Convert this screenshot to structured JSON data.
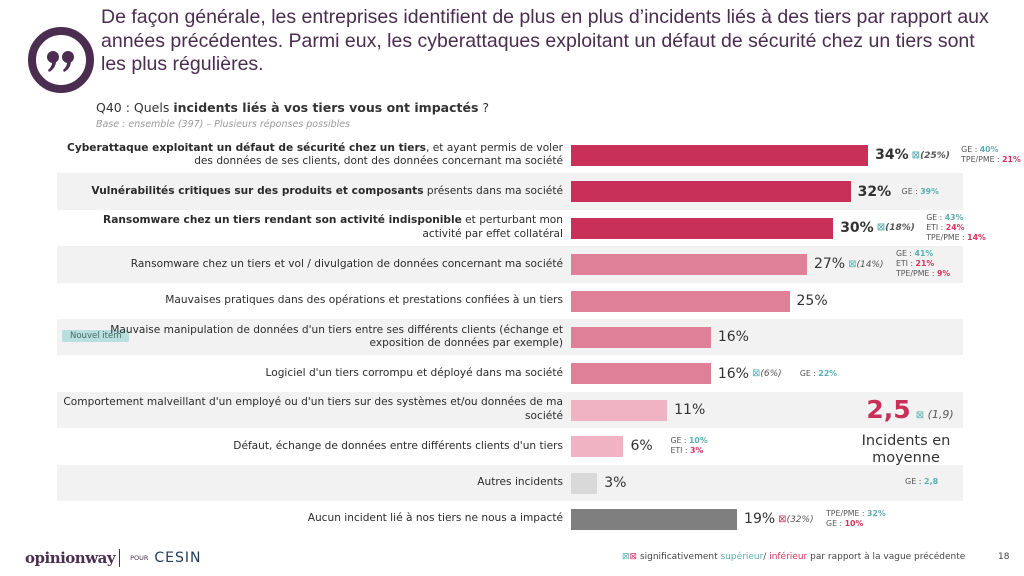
{
  "headline": "De façon générale, les entreprises identifient de plus en plus d’incidents liés à des tiers par rapport aux années précédentes. Parmi eux, les cyberattaques exploitant un défaut de sécurité chez un tiers sont les plus régulières.",
  "question": {
    "prefix": "Q40 : Quels ",
    "bold": "incidents liés à vos tiers vous ont impactés",
    "suffix": " ?",
    "base": "Base : ensemble (397) – Plusieurs réponses possibles"
  },
  "colors": {
    "dark_red": "#c8305a",
    "mid_pink": "#e07f98",
    "light_pink": "#efb3c3",
    "light_gray": "#d9d9d9",
    "dark_gray": "#7f7f7f",
    "superior": "#5bb0b0",
    "inferior": "#d6335e",
    "brand": "#4a2d4f"
  },
  "trend_glyph": "⊠",
  "chart_data": {
    "type": "bar",
    "orientation": "horizontal",
    "title": "Q40 : Quels incidents liés à vos tiers vous ont impactés ?",
    "xlabel": "",
    "ylabel": "",
    "xlim": [
      0,
      100
    ],
    "unit": "%",
    "categories": [
      "Cyberattaque exploitant un défaut de sécurité chez un tiers, et ayant permis de voler des données de ses clients, dont des données concernant ma société",
      "Vulnérabilités critiques sur des produits et composants présents dans ma société",
      "Ransomware chez un tiers rendant son activité indisponible et perturbant mon activité par effet collatéral",
      "Ransomware chez un tiers et vol / divulgation de données concernant ma société",
      "Mauvaises pratiques dans des opérations et prestations confiées à un tiers",
      "Mauvaise manipulation de données d'un tiers entre ses différents clients (échange et exposition de données par exemple)",
      "Logiciel d'un tiers corrompu et déployé dans ma société",
      "Comportement malveillant d'un employé ou d'un tiers sur des systèmes et/ou données de ma société",
      "Défaut, échange de données entre différents clients d'un tiers",
      "Autres incidents",
      "Aucun incident lié à nos tiers ne nous a impacté"
    ],
    "values": [
      34,
      32,
      30,
      27,
      25,
      16,
      16,
      11,
      6,
      3,
      19
    ],
    "rows": [
      {
        "label_bold": "Cyberattaque exploitant un défaut de sécurité chez un tiers",
        "label_rest": ", et ayant permis de voler des données de ses clients, dont des données concernant ma société",
        "value": 34,
        "value_label": "34%",
        "bold": true,
        "color": "dark_red",
        "trend": "up",
        "previous": "(25%)",
        "subgroups": [
          {
            "name": "GE : ",
            "value": "40%",
            "dir": "sup"
          },
          {
            "name": "TPE/PME : ",
            "value": "21%",
            "dir": "inf"
          }
        ]
      },
      {
        "label_bold": "Vulnérabilités critiques sur des produits et composants",
        "label_rest": " présents dans ma société",
        "value": 32,
        "value_label": "32%",
        "bold": true,
        "color": "dark_red",
        "trend": null,
        "previous": null,
        "subgroups": [
          {
            "name": "GE : ",
            "value": "39%",
            "dir": "sup"
          }
        ]
      },
      {
        "label_bold": "Ransomware chez un tiers rendant son activité indisponible",
        "label_rest": " et perturbant mon activité par effet collatéral",
        "value": 30,
        "value_label": "30%",
        "bold": true,
        "color": "dark_red",
        "trend": "up",
        "previous": "(18%)",
        "subgroups": [
          {
            "name": "GE : ",
            "value": "43%",
            "dir": "sup"
          },
          {
            "name": "ETI : ",
            "value": "24%",
            "dir": "inf"
          },
          {
            "name": "TPE/PME : ",
            "value": "14%",
            "dir": "inf"
          }
        ]
      },
      {
        "label_bold": "",
        "label_rest": "Ransomware chez un tiers et vol / divulgation de données concernant ma société",
        "value": 27,
        "value_label": "27%",
        "bold": false,
        "color": "mid_pink",
        "trend": "up",
        "previous": "(14%)",
        "subgroups": [
          {
            "name": "GE : ",
            "value": "41%",
            "dir": "sup"
          },
          {
            "name": "ETI : ",
            "value": "21%",
            "dir": "inf"
          },
          {
            "name": "TPE/PME : ",
            "value": "9%",
            "dir": "inf"
          }
        ]
      },
      {
        "label_bold": "",
        "label_rest": "Mauvaises pratiques dans des opérations et prestations confiées à un tiers",
        "value": 25,
        "value_label": "25%",
        "bold": false,
        "color": "mid_pink",
        "trend": null,
        "previous": null,
        "subgroups": []
      },
      {
        "label_bold": "",
        "label_rest": "Mauvaise manipulation de données d'un tiers entre ses différents clients (échange et exposition de données par exemple)",
        "value": 16,
        "value_label": "16%",
        "bold": false,
        "color": "mid_pink",
        "trend": null,
        "previous": null,
        "badge": "Nouvel item",
        "subgroups": []
      },
      {
        "label_bold": "",
        "label_rest": "Logiciel d'un tiers corrompu et déployé dans ma société",
        "value": 16,
        "value_label": "16%",
        "bold": false,
        "color": "mid_pink",
        "trend": "up",
        "previous": "(6%)",
        "subgroups": [
          {
            "name": "GE : ",
            "value": "22%",
            "dir": "sup"
          }
        ]
      },
      {
        "label_bold": "",
        "label_rest": "Comportement malveillant d'un employé ou d'un tiers sur des systèmes et/ou données de ma société",
        "value": 11,
        "value_label": "11%",
        "bold": false,
        "color": "light_pink",
        "trend": null,
        "previous": null,
        "subgroups": []
      },
      {
        "label_bold": "",
        "label_rest": "Défaut, échange de données entre différents clients d'un tiers",
        "value": 6,
        "value_label": "6%",
        "bold": false,
        "color": "light_pink",
        "trend": null,
        "previous": null,
        "subgroups": [
          {
            "name": "GE : ",
            "value": "10%",
            "dir": "sup"
          },
          {
            "name": "ETI : ",
            "value": "3%",
            "dir": "inf"
          }
        ]
      },
      {
        "label_bold": "",
        "label_rest": "Autres incidents",
        "value": 3,
        "value_label": "3%",
        "bold": false,
        "color": "light_gray",
        "trend": null,
        "previous": null,
        "subgroups": []
      },
      {
        "label_bold": "",
        "label_rest": "Aucun incident lié à nos tiers ne nous a impacté",
        "value": 19,
        "value_label": "19%",
        "bold": false,
        "color": "dark_gray",
        "trend": "down",
        "previous": "(32%)",
        "subgroups": [
          {
            "name": "TPE/PME : ",
            "value": "32%",
            "dir": "sup"
          },
          {
            "name": "GE : ",
            "value": "10%",
            "dir": "inf"
          }
        ]
      }
    ],
    "annotations": {
      "average_value": "2,5",
      "average_trend": "up",
      "average_previous": "(1,9)",
      "average_label": "Incidents en moyenne",
      "average_subgroup_name": "GE : ",
      "average_subgroup_value": "2,8"
    }
  },
  "footer": {
    "logo_left": "opinionway",
    "logo_pour": "POUR",
    "logo_right": "CESIN",
    "legend_prefix": " significativement ",
    "legend_sup": "supérieur",
    "legend_sep": "/ ",
    "legend_inf": "inférieur",
    "legend_suffix": " par rapport à la vague précédente",
    "page_number": "18"
  }
}
